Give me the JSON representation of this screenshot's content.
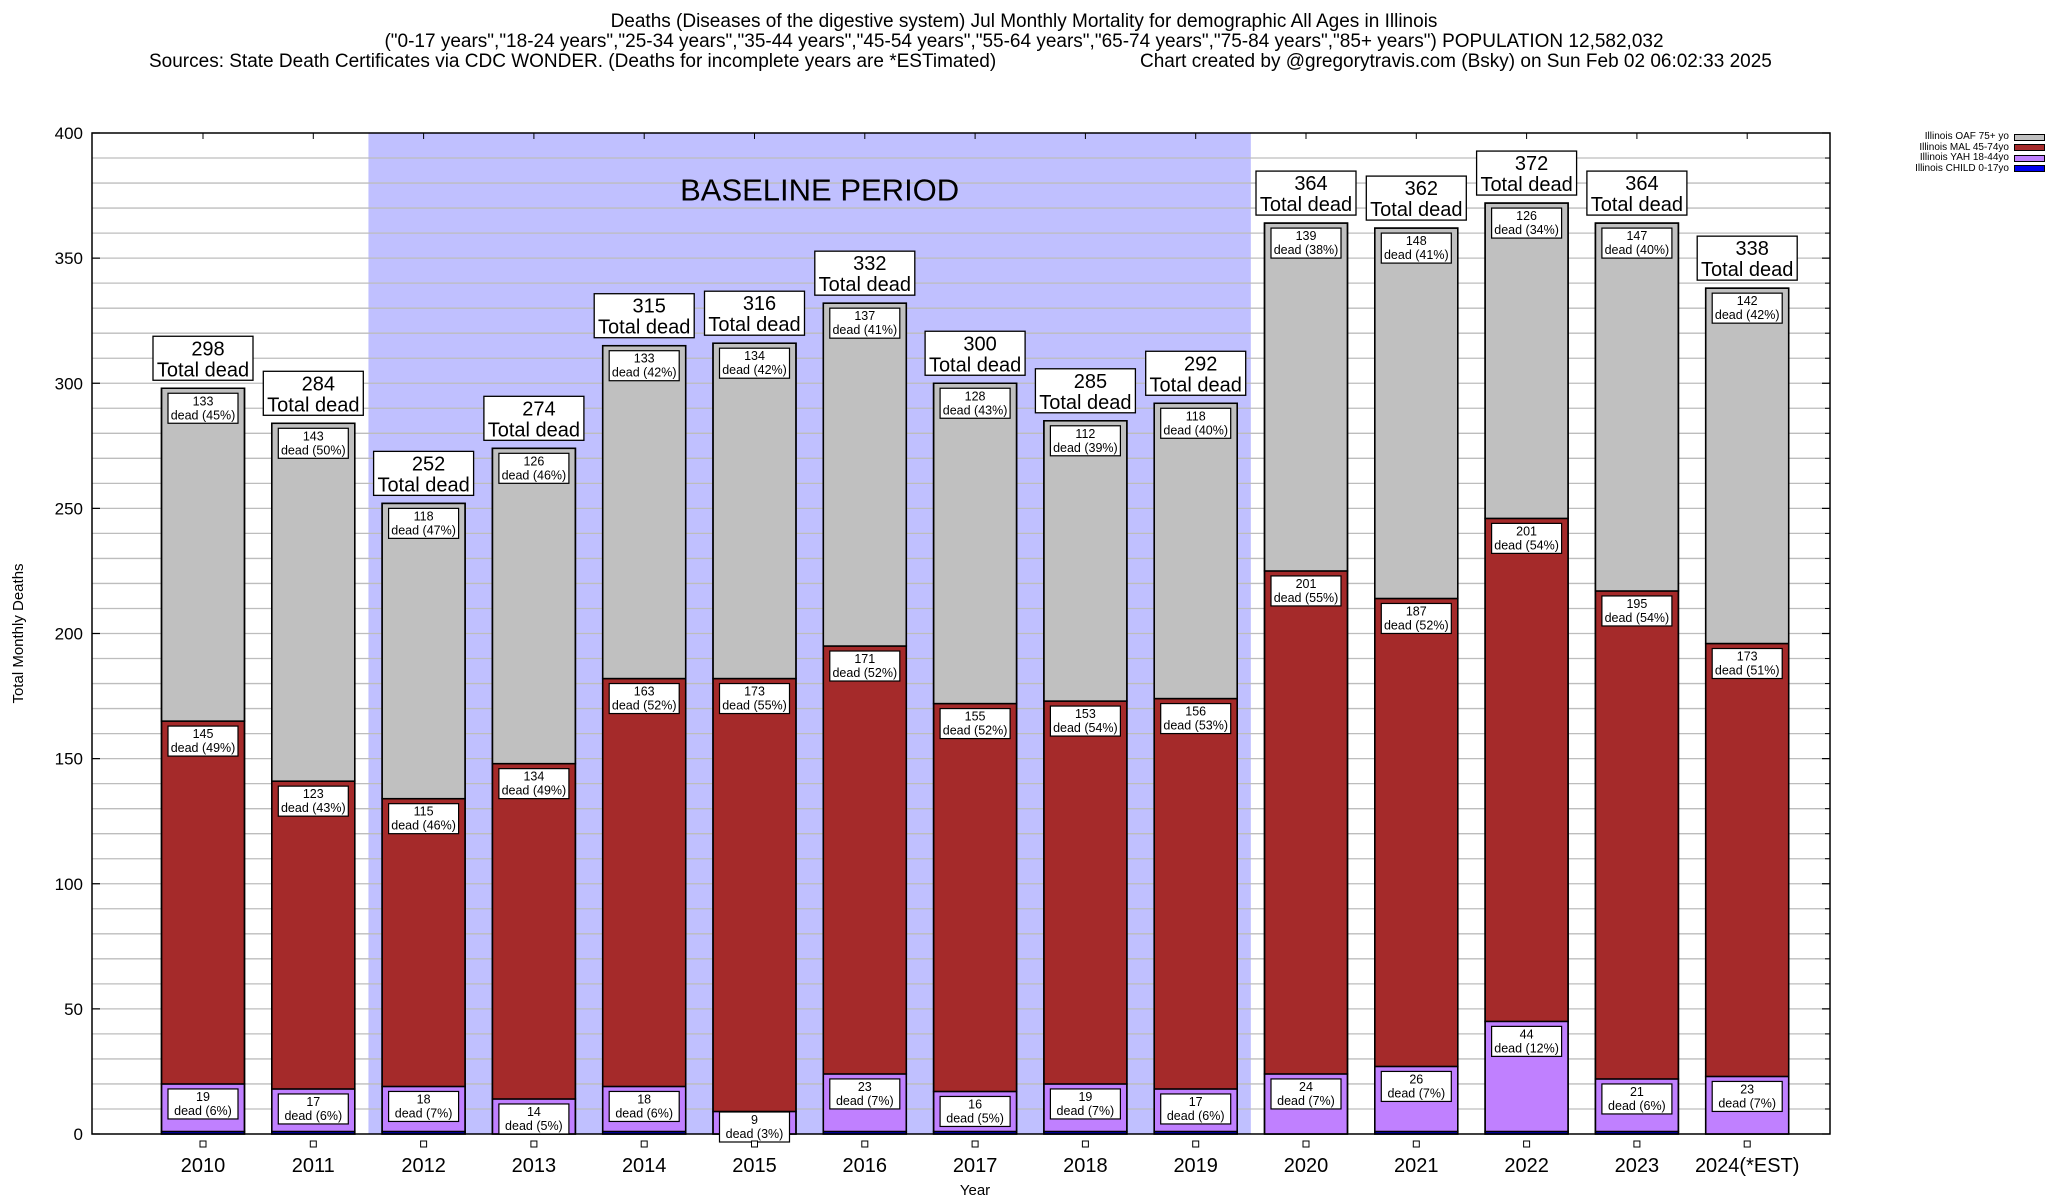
{
  "chart_data": {
    "type": "bar",
    "stacked": true,
    "title": "Deaths (Diseases of the digestive system) Jul Monthly Mortality for demographic All Ages in Illinois",
    "subtitle": "(\"0-17 years\",\"18-24 years\",\"25-34 years\",\"35-44 years\",\"45-54 years\",\"55-64 years\",\"65-74 years\",\"75-84 years\",\"85+ years\") POPULATION 12,582,032",
    "sources": "Sources: State Death Certificates via CDC WONDER. (Deaths for incomplete years are *ESTimated)",
    "credit": "Chart created by @gregorytravis.com (Bsky) on Sun Feb 02 06:02:33 2025",
    "xlabel": "Year",
    "ylabel": "Total Monthly Deaths",
    "ylim": [
      0,
      400
    ],
    "yticks": [
      0,
      50,
      100,
      150,
      200,
      250,
      300,
      350,
      400
    ],
    "grid": true,
    "legend_position": "top-right",
    "categories": [
      "2010",
      "2011",
      "2012",
      "2013",
      "2014",
      "2015",
      "2016",
      "2017",
      "2018",
      "2019",
      "2020",
      "2021",
      "2022",
      "2023",
      "2024(*EST)"
    ],
    "totals": [
      298,
      284,
      252,
      274,
      315,
      316,
      332,
      300,
      285,
      292,
      364,
      362,
      372,
      364,
      338
    ],
    "total_label_suffix": "Total dead",
    "segment_label_word": "dead",
    "series": [
      {
        "name": "Illinois CHILD 0-17yo",
        "color": "#0000ee",
        "values": [
          1,
          1,
          1,
          0,
          1,
          0,
          1,
          1,
          1,
          1,
          0,
          1,
          1,
          1,
          0
        ],
        "labeled": false
      },
      {
        "name": "Illinois YAH 18-44yo",
        "color": "#c080ff",
        "values": [
          19,
          17,
          18,
          14,
          18,
          9,
          23,
          16,
          19,
          17,
          24,
          26,
          44,
          21,
          23
        ],
        "pct": [
          6,
          6,
          7,
          5,
          6,
          3,
          7,
          5,
          7,
          6,
          7,
          7,
          12,
          6,
          7
        ],
        "labeled": true
      },
      {
        "name": "Illinois MAL 45-74yo",
        "color": "#a52a2a",
        "values": [
          145,
          123,
          115,
          134,
          163,
          173,
          171,
          155,
          153,
          156,
          201,
          187,
          201,
          195,
          173
        ],
        "pct": [
          49,
          43,
          46,
          49,
          52,
          55,
          52,
          52,
          54,
          53,
          55,
          52,
          54,
          54,
          51
        ],
        "labeled": true
      },
      {
        "name": "Illinois OAF 75+ yo",
        "color": "#c0c0c0",
        "values": [
          133,
          143,
          118,
          126,
          133,
          134,
          137,
          128,
          112,
          118,
          139,
          148,
          126,
          147,
          142
        ],
        "pct": [
          45,
          50,
          47,
          46,
          42,
          42,
          41,
          43,
          39,
          40,
          38,
          41,
          34,
          40,
          42
        ],
        "labeled": true
      }
    ],
    "annotations": [
      {
        "text": "BASELINE PERIOD",
        "x_range": [
          "2012",
          "2019"
        ],
        "color": "#c0c0ff"
      }
    ]
  }
}
